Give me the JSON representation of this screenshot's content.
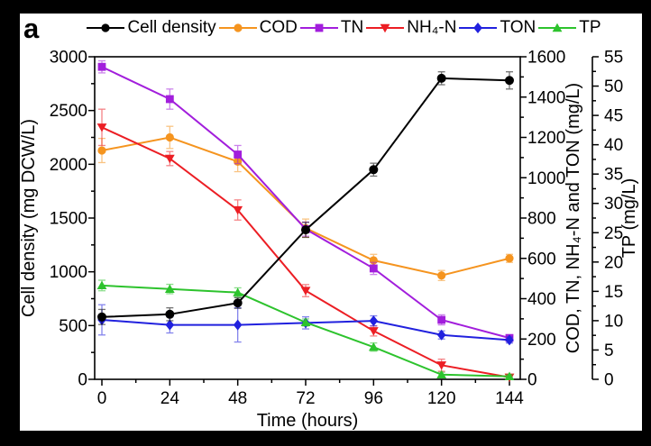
{
  "panel": {
    "label": "a"
  },
  "chart_data": {
    "type": "line",
    "title": "",
    "xlabel": "Time (hours)",
    "x_axis": {
      "range": [
        0,
        144
      ],
      "ticks": [
        0,
        24,
        48,
        72,
        96,
        120,
        144
      ],
      "minor_step": 12
    },
    "axes": {
      "left": {
        "label": "Cell density (mg DCW/L)",
        "range": [
          0,
          3000
        ],
        "ticks": [
          0,
          500,
          1000,
          1500,
          2000,
          2500,
          3000
        ],
        "minor_step": 250
      },
      "right1": {
        "label": "COD, TN, NH₄-N and TON (mg/L)",
        "range": [
          0,
          1600
        ],
        "ticks": [
          0,
          200,
          400,
          600,
          800,
          1000,
          1200,
          1400,
          1600
        ],
        "minor_step": 100
      },
      "right2": {
        "label": "TP (mg/L)",
        "range": [
          0,
          55
        ],
        "ticks": [
          0,
          5,
          10,
          15,
          20,
          25,
          30,
          35,
          40,
          45,
          50,
          55
        ],
        "minor_step": 2.5
      }
    },
    "x": [
      0,
      24,
      48,
      72,
      96,
      120,
      144
    ],
    "series": [
      {
        "name": "Cell density",
        "axis": "left",
        "color": "#000000",
        "marker": "circle",
        "values": [
          580,
          605,
          710,
          1390,
          1950,
          2800,
          2780
        ],
        "errors": [
          70,
          60,
          50,
          70,
          60,
          60,
          80
        ]
      },
      {
        "name": "COD",
        "axis": "right1",
        "color": "#F5941F",
        "marker": "circle",
        "values": [
          1135,
          1200,
          1080,
          750,
          590,
          515,
          600
        ],
        "errors": [
          60,
          55,
          50,
          45,
          30,
          25,
          20
        ]
      },
      {
        "name": "TN",
        "axis": "right1",
        "color": "#A21EDC",
        "marker": "square",
        "values": [
          1550,
          1390,
          1115,
          745,
          550,
          295,
          205
        ],
        "errors": [
          30,
          50,
          45,
          35,
          30,
          25,
          15
        ]
      },
      {
        "name": "NH₄-N",
        "axis": "right1",
        "color": "#EC1E24",
        "marker": "triangle-down",
        "values": [
          1250,
          1095,
          840,
          440,
          240,
          70,
          10
        ],
        "errors": [
          90,
          35,
          50,
          30,
          25,
          30,
          8
        ]
      },
      {
        "name": "TON",
        "axis": "right1",
        "color": "#2121DE",
        "marker": "diamond",
        "values": [
          295,
          270,
          270,
          280,
          290,
          220,
          195
        ],
        "errors": [
          75,
          40,
          85,
          30,
          25,
          20,
          15
        ]
      },
      {
        "name": "TP",
        "axis": "right2",
        "color": "#2DC32D",
        "marker": "triangle-up",
        "values": [
          16,
          15.4,
          14.8,
          9.7,
          5.5,
          0.8,
          0.5
        ],
        "errors": [
          0.9,
          0.8,
          0.8,
          0.6,
          0.7,
          0.4,
          0.3
        ]
      }
    ],
    "legend_position": "top",
    "grid": false
  }
}
